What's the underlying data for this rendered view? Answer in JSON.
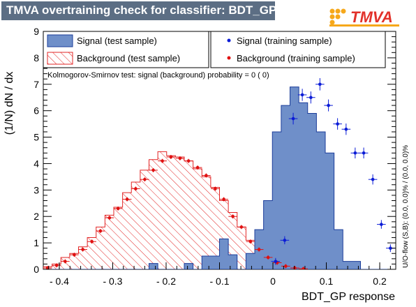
{
  "title": "TMVA overtraining check for classifier: BDT_GP",
  "logo": {
    "text_t": "T",
    "text_rest": "MVA",
    "colors": [
      "#f6a81a",
      "#e2312a"
    ]
  },
  "overflow_note": "U/O-flow (S,B): (0.0, 0.0)% / (0.0, 0.0)%",
  "legend": {
    "signal_test": "Signal (test sample)",
    "background_test": "Background (test sample)",
    "signal_train": "Signal (training sample)",
    "background_train": "Background (training sample)"
  },
  "ks_text": "Kolmogorov-Smirnov test: signal (background) probability =     0 (    0)",
  "colors": {
    "signal_fill": "#6f8fc9",
    "signal_line": "#1b3d9a",
    "background": "#e22424",
    "signal_points": "#0a1bd6",
    "background_points": "#e01010"
  },
  "chart_data": {
    "type": "histogram",
    "xlabel": "BDT_GP response",
    "ylabel": "(1/N) dN / dx",
    "xlim": [
      -0.43,
      0.23
    ],
    "ylim": [
      0,
      9
    ],
    "xticks": [
      -0.4,
      -0.3,
      -0.2,
      -0.1,
      0,
      0.1,
      0.2
    ],
    "xtick_labels": [
      "- 0.4",
      "- 0.3",
      "- 0.2",
      "- 0.1",
      "0",
      "0.1",
      "0.2"
    ],
    "yticks": [
      0,
      1,
      2,
      3,
      4,
      5,
      6,
      7,
      8,
      9
    ],
    "bin_edges_start": -0.43,
    "bin_width": 0.0165,
    "signal_test": [
      0,
      0,
      0,
      0,
      0,
      0,
      0,
      0,
      0,
      0,
      0,
      0,
      0.22,
      0,
      0,
      0,
      0.22,
      0,
      0.5,
      0.5,
      1.15,
      0.55,
      0,
      0.6,
      1.5,
      2.6,
      5.2,
      6.2,
      6.9,
      6.3,
      5.9,
      5.2,
      4.4,
      1.5,
      0.3,
      0.3,
      0,
      0,
      0,
      0
    ],
    "background_test": [
      0.1,
      0.2,
      0.45,
      0.6,
      0.85,
      1.2,
      1.6,
      2.05,
      2.35,
      2.9,
      3.3,
      3.75,
      4.15,
      4.45,
      4.3,
      4.25,
      4.1,
      3.8,
      3.5,
      3.1,
      2.6,
      2.15,
      1.6,
      1.1,
      0.7,
      0.45,
      0.25,
      0.12,
      0.05,
      0.02,
      0.01,
      0,
      0,
      0,
      0,
      0,
      0,
      0,
      0,
      0
    ],
    "signal_train": [
      {
        "x": 0.005,
        "y": 0.3
      },
      {
        "x": 0.022,
        "y": 1.1
      },
      {
        "x": 0.038,
        "y": 5.7
      },
      {
        "x": 0.055,
        "y": 6.6
      },
      {
        "x": 0.071,
        "y": 6.5
      },
      {
        "x": 0.088,
        "y": 7.0
      },
      {
        "x": 0.104,
        "y": 6.2
      },
      {
        "x": 0.121,
        "y": 5.5
      },
      {
        "x": 0.137,
        "y": 5.3
      },
      {
        "x": 0.154,
        "y": 4.4
      },
      {
        "x": 0.17,
        "y": 4.4
      },
      {
        "x": 0.187,
        "y": 3.4
      },
      {
        "x": 0.203,
        "y": 1.7
      },
      {
        "x": 0.22,
        "y": 0.8
      }
    ],
    "background_train": [
      -0.422,
      -0.405,
      -0.389,
      -0.372,
      -0.356,
      -0.339,
      -0.323,
      -0.306,
      -0.29,
      -0.273,
      -0.257,
      -0.24,
      -0.224,
      -0.207,
      -0.191,
      -0.174,
      -0.158,
      -0.141,
      -0.125,
      -0.108,
      -0.092,
      -0.075,
      -0.059,
      -0.042,
      -0.026,
      -0.009,
      0.008,
      0.024,
      0.041,
      0.057
    ]
  },
  "background_train_values": [
    0.05,
    0.15,
    0.3,
    0.55,
    0.75,
    1.05,
    1.45,
    1.95,
    2.3,
    2.65,
    3.05,
    3.4,
    3.75,
    4.1,
    4.25,
    4.2,
    4.1,
    3.85,
    3.55,
    3.05,
    2.65,
    2.0,
    1.6,
    1.05,
    0.75,
    0.45,
    0.25,
    0.12,
    0.05,
    0.02
  ]
}
